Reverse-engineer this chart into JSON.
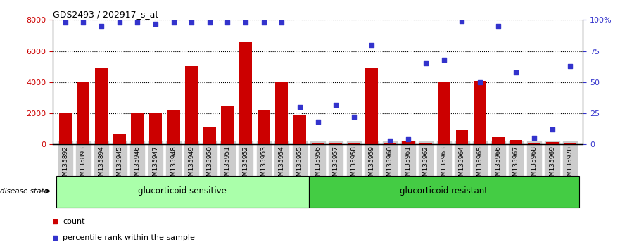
{
  "title": "GDS2493 / 202917_s_at",
  "categories": [
    "GSM135892",
    "GSM135893",
    "GSM135894",
    "GSM135945",
    "GSM135946",
    "GSM135947",
    "GSM135948",
    "GSM135949",
    "GSM135950",
    "GSM135951",
    "GSM135952",
    "GSM135953",
    "GSM135954",
    "GSM135955",
    "GSM135956",
    "GSM135957",
    "GSM135958",
    "GSM135959",
    "GSM135960",
    "GSM135961",
    "GSM135962",
    "GSM135963",
    "GSM135964",
    "GSM135965",
    "GSM135966",
    "GSM135967",
    "GSM135968",
    "GSM135969",
    "GSM135970"
  ],
  "counts": [
    2000,
    4050,
    4900,
    700,
    2050,
    2000,
    2250,
    5050,
    1100,
    2500,
    6550,
    2250,
    4000,
    1900,
    100,
    100,
    100,
    4950,
    100,
    200,
    100,
    4050,
    900,
    4100,
    450,
    300,
    100,
    150,
    100
  ],
  "percentile": [
    98,
    98,
    95,
    98,
    98,
    97,
    98,
    98,
    98,
    98,
    98,
    98,
    98,
    30,
    18,
    32,
    22,
    80,
    3,
    4,
    65,
    68,
    99,
    50,
    95,
    58,
    5,
    12,
    63
  ],
  "group_sensitive_count": 14,
  "bar_color": "#cc0000",
  "dot_color": "#3333cc",
  "ylim_left": [
    0,
    8000
  ],
  "ylim_right": [
    0,
    100
  ],
  "left_yticks": [
    0,
    2000,
    4000,
    6000,
    8000
  ],
  "right_yticks": [
    0,
    25,
    50,
    75,
    100
  ],
  "right_yticklabels": [
    "0",
    "25",
    "50",
    "75",
    "100%"
  ],
  "group_sensitive_label": "glucorticoid sensitive",
  "group_resistant_label": "glucorticoid resistant",
  "disease_state_label": "disease state",
  "legend_count_label": "count",
  "legend_pct_label": "percentile rank within the sample",
  "sensitive_color": "#aaffaa",
  "resistant_color": "#44cc44",
  "xticklabel_bg": "#cccccc",
  "figsize": [
    8.81,
    3.54
  ],
  "dpi": 100
}
